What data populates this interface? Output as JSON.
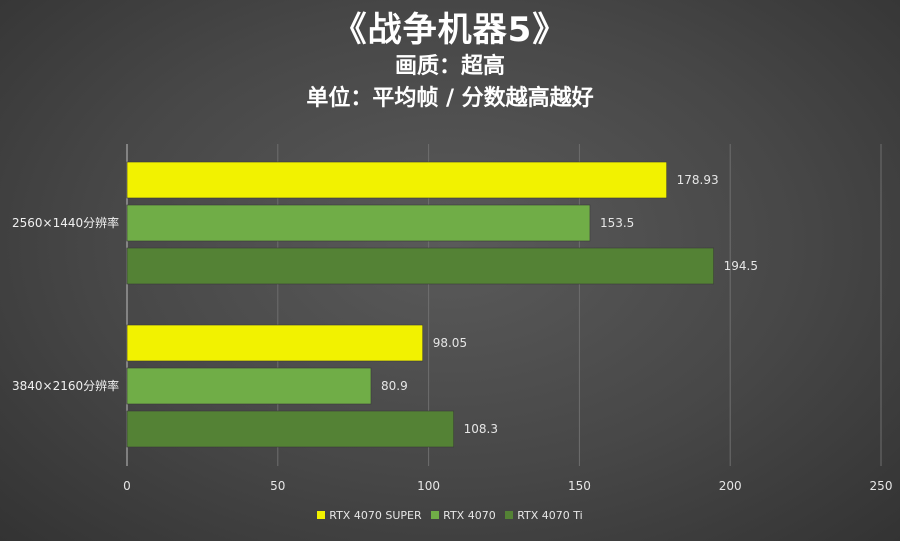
{
  "chart_data": {
    "type": "bar",
    "orientation": "horizontal",
    "title": "《战争机器5》",
    "subtitle": "画质：超高",
    "subtitle2": "单位：平均帧 / 分数越高越好",
    "categories": [
      "2560×1440分辨率",
      "3840×2160分辨率"
    ],
    "series": [
      {
        "name": "RTX 4070 SUPER",
        "color": "#f2f200",
        "values": [
          178.93,
          98.05
        ],
        "labels": [
          "178.93",
          "98.05"
        ]
      },
      {
        "name": "RTX 4070",
        "color": "#70ad47",
        "values": [
          153.5,
          80.9
        ],
        "labels": [
          "153.5",
          "80.9"
        ]
      },
      {
        "name": "RTX 4070 Ti",
        "color": "#548235",
        "values": [
          194.5,
          108.3
        ],
        "labels": [
          "194.5",
          "108.3"
        ]
      }
    ],
    "xlim": [
      0,
      250
    ],
    "xticks": [
      0,
      50,
      100,
      150,
      200,
      250
    ],
    "grid": true,
    "legend_position": "bottom"
  }
}
